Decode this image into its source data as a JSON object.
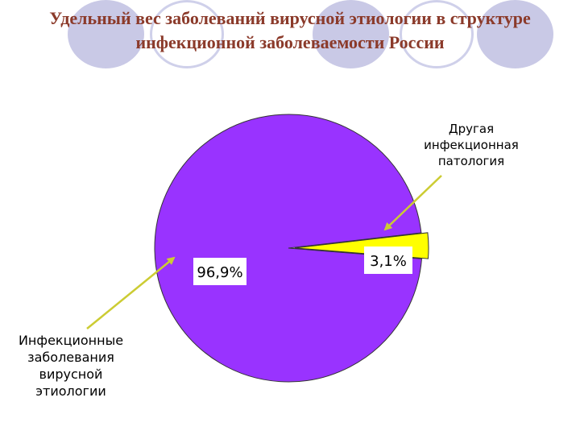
{
  "colors": {
    "viral": "#9933ff",
    "other": "#ffff00",
    "title": "#8b3a2a",
    "arrow": "#cccc33",
    "decor_fill": "#c9c9e6",
    "decor_outline": "#cfd0ea"
  },
  "title_lines": [
    "Удельный вес заболеваний вирусной этиологии в структуре",
    "инфекционной заболеваемости России"
  ],
  "chart_data": {
    "type": "pie",
    "title": "",
    "slices": [
      {
        "label": "Инфекционные заболевания вирусной этиологии",
        "value": 96.9,
        "display": "96,9%",
        "color": "#9933ff"
      },
      {
        "label": "Другая инфекционная патология",
        "value": 3.1,
        "display": "3,1%",
        "color": "#ffff00"
      }
    ],
    "callout_lines": {
      "other": [
        "Другая",
        "инфекционная",
        "патология"
      ],
      "viral": [
        "Инфекционные",
        "заболевания",
        "вирусной",
        "этиологии"
      ]
    }
  }
}
